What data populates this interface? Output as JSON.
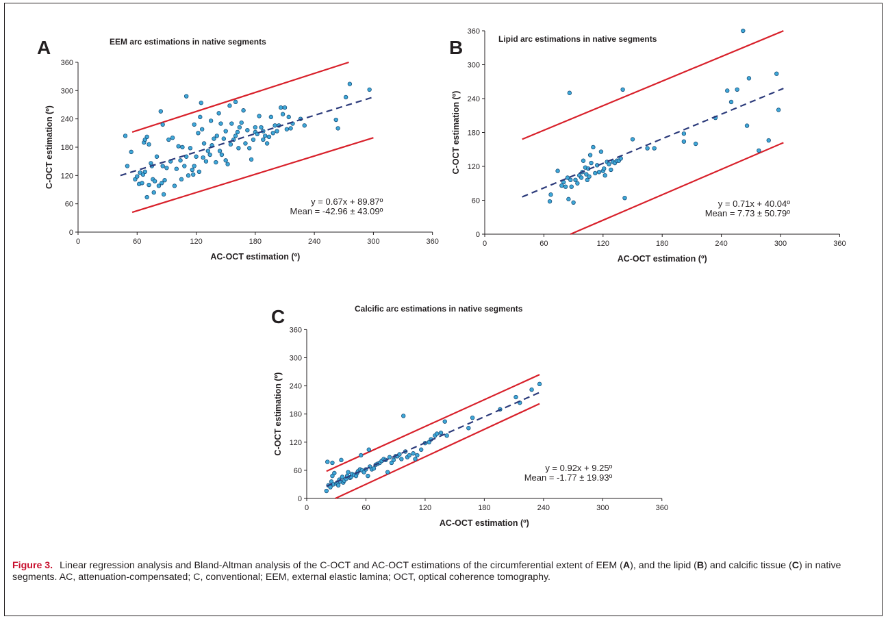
{
  "caption": {
    "figure_label": "Figure 3.",
    "text_1": "Linear regression analysis and Bland-Altman analysis of the C-OCT and AC-OCT estimations of the circumferential extent of EEM (",
    "bold_a": "A",
    "text_2": "), and the lipid (",
    "bold_b": "B",
    "text_3": ") and calcific tissue (",
    "bold_c": "C",
    "text_4": ") in native segments. AC, attenuation-compensated; C, conventional; EEM, external elastic lamina; OCT, optical coherence tomography."
  },
  "colors": {
    "point_fill": "#3ea8d8",
    "point_stroke": "#1a4f7a",
    "limit_line": "#d8202a",
    "regression_line": "#2b3a7a",
    "axis": "#231f20"
  },
  "chart_data": [
    {
      "panel": "A",
      "type": "scatter",
      "title": "EEM arc estimations in native segments",
      "xlabel": "AC-OCT estimation (º)",
      "ylabel": "C-OCT estimation (º)",
      "xlim": [
        0,
        360
      ],
      "ylim": [
        0,
        360
      ],
      "xticks": [
        0,
        60,
        120,
        180,
        240,
        300,
        360
      ],
      "yticks": [
        0,
        60,
        120,
        180,
        240,
        300,
        360
      ],
      "equation": "y = 0.67x + 89.87º",
      "mean": "Mean = -42.96 ± 43.09º",
      "regression_line": {
        "x": [
          43,
          298
        ],
        "y": [
          120,
          285
        ]
      },
      "upper_limit": {
        "x": [
          55,
          275
        ],
        "y": [
          212,
          360
        ]
      },
      "lower_limit": {
        "x": [
          55,
          300
        ],
        "y": [
          42,
          200
        ]
      },
      "points": [
        [
          48,
          204
        ],
        [
          50,
          140
        ],
        [
          54,
          170
        ],
        [
          58,
          112
        ],
        [
          60,
          118
        ],
        [
          62,
          102
        ],
        [
          63,
          126
        ],
        [
          65,
          104
        ],
        [
          66,
          122
        ],
        [
          67,
          190
        ],
        [
          68,
          196
        ],
        [
          68,
          128
        ],
        [
          70,
          202
        ],
        [
          70,
          74
        ],
        [
          72,
          186
        ],
        [
          72,
          100
        ],
        [
          74,
          146
        ],
        [
          75,
          140
        ],
        [
          76,
          112
        ],
        [
          77,
          84
        ],
        [
          78,
          108
        ],
        [
          80,
          160
        ],
        [
          82,
          98
        ],
        [
          84,
          256
        ],
        [
          85,
          104
        ],
        [
          86,
          140
        ],
        [
          86,
          228
        ],
        [
          87,
          80
        ],
        [
          88,
          110
        ],
        [
          90,
          136
        ],
        [
          92,
          196
        ],
        [
          94,
          150
        ],
        [
          96,
          200
        ],
        [
          98,
          98
        ],
        [
          100,
          134
        ],
        [
          102,
          182
        ],
        [
          104,
          152
        ],
        [
          105,
          112
        ],
        [
          106,
          180
        ],
        [
          108,
          140
        ],
        [
          110,
          160
        ],
        [
          110,
          288
        ],
        [
          112,
          120
        ],
        [
          114,
          178
        ],
        [
          116,
          132
        ],
        [
          117,
          122
        ],
        [
          118,
          228
        ],
        [
          118,
          140
        ],
        [
          120,
          160
        ],
        [
          122,
          210
        ],
        [
          123,
          128
        ],
        [
          124,
          244
        ],
        [
          125,
          274
        ],
        [
          126,
          218
        ],
        [
          127,
          158
        ],
        [
          128,
          188
        ],
        [
          130,
          150
        ],
        [
          132,
          172
        ],
        [
          134,
          164
        ],
        [
          135,
          236
        ],
        [
          136,
          184
        ],
        [
          138,
          198
        ],
        [
          140,
          148
        ],
        [
          141,
          204
        ],
        [
          143,
          252
        ],
        [
          144,
          172
        ],
        [
          145,
          230
        ],
        [
          146,
          164
        ],
        [
          148,
          198
        ],
        [
          150,
          214
        ],
        [
          150,
          152
        ],
        [
          152,
          144
        ],
        [
          154,
          268
        ],
        [
          155,
          186
        ],
        [
          156,
          230
        ],
        [
          158,
          196
        ],
        [
          160,
          204
        ],
        [
          160,
          276
        ],
        [
          162,
          212
        ],
        [
          163,
          178
        ],
        [
          164,
          222
        ],
        [
          166,
          232
        ],
        [
          168,
          258
        ],
        [
          170,
          188
        ],
        [
          172,
          216
        ],
        [
          174,
          178
        ],
        [
          176,
          154
        ],
        [
          178,
          196
        ],
        [
          180,
          222
        ],
        [
          180,
          212
        ],
        [
          182,
          208
        ],
        [
          184,
          246
        ],
        [
          186,
          222
        ],
        [
          188,
          196
        ],
        [
          188,
          214
        ],
        [
          190,
          204
        ],
        [
          192,
          188
        ],
        [
          194,
          202
        ],
        [
          196,
          244
        ],
        [
          198,
          210
        ],
        [
          200,
          226
        ],
        [
          202,
          214
        ],
        [
          204,
          226
        ],
        [
          206,
          264
        ],
        [
          208,
          250
        ],
        [
          210,
          264
        ],
        [
          212,
          218
        ],
        [
          214,
          244
        ],
        [
          216,
          220
        ],
        [
          218,
          230
        ],
        [
          226,
          240
        ],
        [
          230,
          226
        ],
        [
          262,
          238
        ],
        [
          264,
          220
        ],
        [
          272,
          286
        ],
        [
          276,
          314
        ],
        [
          296,
          302
        ]
      ]
    },
    {
      "panel": "B",
      "type": "scatter",
      "title": "Lipid arc estimations in native segments",
      "xlabel": "AC-OCT estimation (º)",
      "ylabel": "C-OCT estimation (º)",
      "xlim": [
        0,
        360
      ],
      "ylim": [
        0,
        360
      ],
      "xticks": [
        0,
        60,
        120,
        180,
        240,
        300,
        360
      ],
      "yticks": [
        0,
        60,
        120,
        180,
        240,
        300,
        360
      ],
      "equation": "y = 0.71x + 40.04º",
      "mean": "Mean = 7.73 ± 50.79º",
      "regression_line": {
        "x": [
          38,
          303
        ],
        "y": [
          66,
          258
        ]
      },
      "upper_limit": {
        "x": [
          38,
          303
        ],
        "y": [
          168,
          360
        ]
      },
      "lower_limit": {
        "x": [
          87,
          303
        ],
        "y": [
          0,
          162
        ]
      },
      "points": [
        [
          66,
          58
        ],
        [
          67,
          70
        ],
        [
          74,
          112
        ],
        [
          78,
          86
        ],
        [
          80,
          92
        ],
        [
          82,
          84
        ],
        [
          84,
          100
        ],
        [
          85,
          62
        ],
        [
          86,
          250
        ],
        [
          87,
          96
        ],
        [
          88,
          84
        ],
        [
          90,
          56
        ],
        [
          92,
          96
        ],
        [
          94,
          90
        ],
        [
          96,
          104
        ],
        [
          98,
          100
        ],
        [
          99,
          110
        ],
        [
          100,
          130
        ],
        [
          102,
          118
        ],
        [
          103,
          106
        ],
        [
          104,
          96
        ],
        [
          105,
          116
        ],
        [
          106,
          102
        ],
        [
          107,
          140
        ],
        [
          108,
          126
        ],
        [
          110,
          154
        ],
        [
          112,
          108
        ],
        [
          114,
          122
        ],
        [
          116,
          110
        ],
        [
          118,
          146
        ],
        [
          120,
          112
        ],
        [
          121,
          116
        ],
        [
          122,
          104
        ],
        [
          124,
          128
        ],
        [
          126,
          124
        ],
        [
          128,
          114
        ],
        [
          130,
          128
        ],
        [
          132,
          126
        ],
        [
          134,
          130
        ],
        [
          136,
          130
        ],
        [
          138,
          134
        ],
        [
          140,
          256
        ],
        [
          142,
          64
        ],
        [
          150,
          168
        ],
        [
          165,
          152
        ],
        [
          172,
          152
        ],
        [
          202,
          164
        ],
        [
          202,
          178
        ],
        [
          214,
          160
        ],
        [
          234,
          206
        ],
        [
          246,
          254
        ],
        [
          250,
          234
        ],
        [
          256,
          256
        ],
        [
          266,
          192
        ],
        [
          268,
          276
        ],
        [
          278,
          148
        ],
        [
          288,
          166
        ],
        [
          296,
          284
        ],
        [
          298,
          220
        ],
        [
          262,
          360
        ]
      ]
    },
    {
      "panel": "C",
      "type": "scatter",
      "title": "Calcific arc estimations in native segments",
      "xlabel": "AC-OCT estimation (º)",
      "ylabel": "C-OCT estimation (º)",
      "xlim": [
        0,
        360
      ],
      "ylim": [
        0,
        360
      ],
      "xticks": [
        0,
        60,
        120,
        180,
        240,
        300,
        360
      ],
      "yticks": [
        0,
        60,
        120,
        180,
        240,
        300,
        360
      ],
      "equation": "y = 0.92x + 9.25º",
      "mean": "Mean = -1.77 ± 19.93º",
      "regression_line": {
        "x": [
          20,
          236
        ],
        "y": [
          26,
          226
        ]
      },
      "upper_limit": {
        "x": [
          20,
          236
        ],
        "y": [
          58,
          264
        ]
      },
      "lower_limit": {
        "x": [
          29,
          236
        ],
        "y": [
          0,
          202
        ]
      },
      "points": [
        [
          20,
          16
        ],
        [
          21,
          78
        ],
        [
          22,
          28
        ],
        [
          24,
          24
        ],
        [
          25,
          36
        ],
        [
          26,
          48
        ],
        [
          26,
          76
        ],
        [
          27,
          30
        ],
        [
          28,
          54
        ],
        [
          30,
          32
        ],
        [
          31,
          34
        ],
        [
          32,
          28
        ],
        [
          33,
          40
        ],
        [
          34,
          36
        ],
        [
          35,
          82
        ],
        [
          36,
          46
        ],
        [
          37,
          34
        ],
        [
          38,
          38
        ],
        [
          40,
          42
        ],
        [
          41,
          48
        ],
        [
          42,
          56
        ],
        [
          44,
          44
        ],
        [
          45,
          46
        ],
        [
          46,
          52
        ],
        [
          48,
          50
        ],
        [
          50,
          48
        ],
        [
          51,
          54
        ],
        [
          52,
          58
        ],
        [
          54,
          62
        ],
        [
          55,
          92
        ],
        [
          56,
          60
        ],
        [
          58,
          56
        ],
        [
          60,
          62
        ],
        [
          62,
          48
        ],
        [
          63,
          104
        ],
        [
          64,
          68
        ],
        [
          66,
          62
        ],
        [
          68,
          64
        ],
        [
          70,
          72
        ],
        [
          72,
          74
        ],
        [
          74,
          76
        ],
        [
          76,
          80
        ],
        [
          78,
          84
        ],
        [
          80,
          82
        ],
        [
          82,
          56
        ],
        [
          84,
          88
        ],
        [
          86,
          76
        ],
        [
          88,
          82
        ],
        [
          90,
          90
        ],
        [
          92,
          90
        ],
        [
          94,
          94
        ],
        [
          96,
          84
        ],
        [
          98,
          176
        ],
        [
          100,
          100
        ],
        [
          102,
          88
        ],
        [
          104,
          92
        ],
        [
          108,
          96
        ],
        [
          110,
          84
        ],
        [
          112,
          92
        ],
        [
          116,
          104
        ],
        [
          120,
          118
        ],
        [
          124,
          120
        ],
        [
          126,
          126
        ],
        [
          130,
          134
        ],
        [
          132,
          138
        ],
        [
          136,
          140
        ],
        [
          140,
          164
        ],
        [
          142,
          134
        ],
        [
          164,
          150
        ],
        [
          168,
          172
        ],
        [
          196,
          190
        ],
        [
          212,
          216
        ],
        [
          216,
          204
        ],
        [
          228,
          232
        ],
        [
          236,
          244
        ]
      ]
    }
  ]
}
